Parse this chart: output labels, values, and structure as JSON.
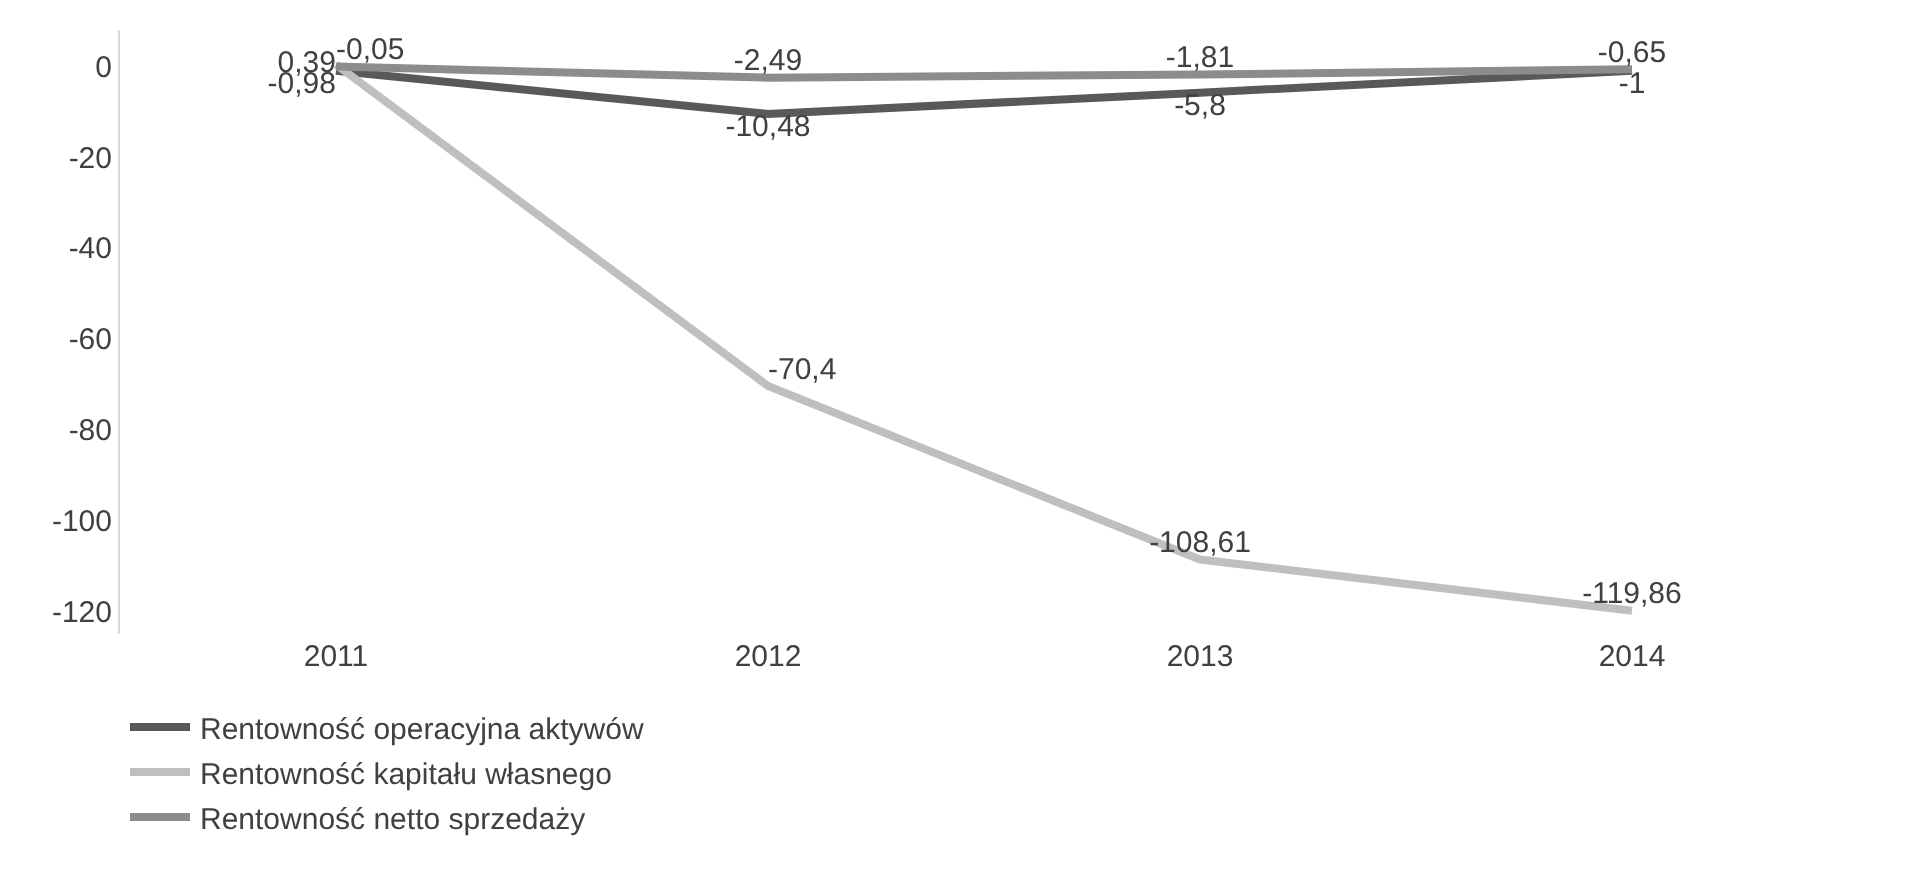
{
  "chart_data": {
    "type": "line",
    "categories": [
      "2011",
      "2012",
      "2013",
      "2014"
    ],
    "series": [
      {
        "name": "Rentowność operacyjna aktywów",
        "color": "#595959",
        "values": [
          -0.98,
          -10.48,
          -5.8,
          -1
        ],
        "value_labels": [
          "-0,98",
          "-10,48",
          "-5,8",
          "-1"
        ]
      },
      {
        "name": "Rentowność kapitału własnego",
        "color": "#bfbfbf",
        "values": [
          0.39,
          -70.4,
          -108.61,
          -119.86
        ],
        "value_labels": [
          "0,39",
          "-70,4",
          "-108,61",
          "-119,86"
        ]
      },
      {
        "name": "Rentowność netto sprzedaży",
        "color": "#8c8c8c",
        "values": [
          -0.05,
          -2.49,
          -1.81,
          -0.65
        ],
        "value_labels": [
          "-0,05",
          "-2,49",
          "-1,81",
          "-0,65"
        ]
      }
    ],
    "ylim": [
      -125,
      8
    ],
    "yticks": [
      0,
      -20,
      -40,
      -60,
      -80,
      -100,
      -120
    ],
    "grid": false,
    "legend": "bottom",
    "marker": "none",
    "line_style": "solid"
  }
}
